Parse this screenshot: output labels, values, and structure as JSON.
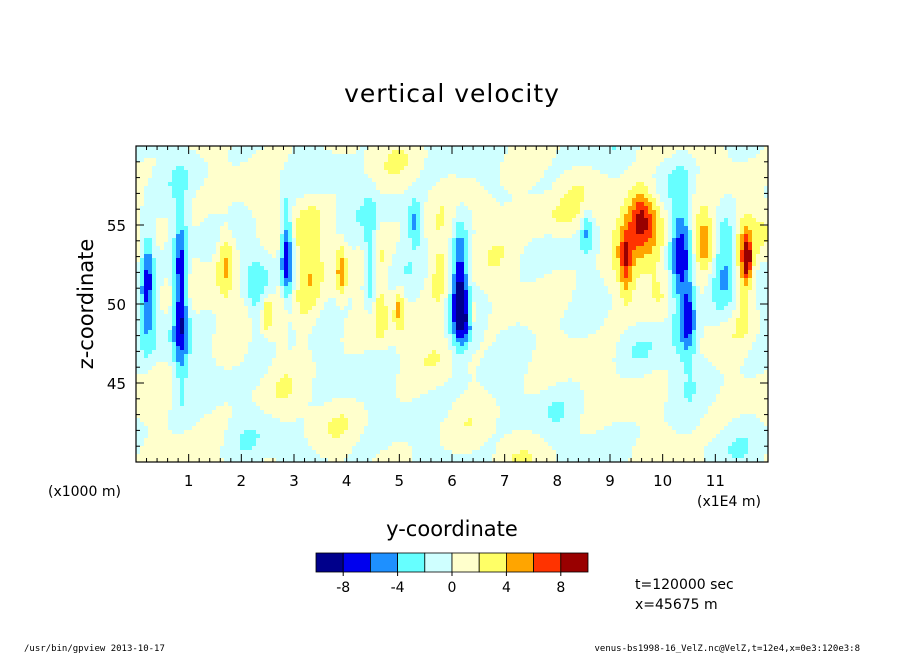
{
  "chart_data": {
    "type": "heatmap",
    "title": "vertical velocity",
    "xlabel": "y-coordinate",
    "ylabel": "z-coordinate",
    "x_unit_label": "(x1E4 m)",
    "y_unit_label": "(x1000 m)",
    "xlim": [
      0,
      12
    ],
    "ylim": [
      40,
      60
    ],
    "x_ticks": [
      "1",
      "2",
      "3",
      "4",
      "5",
      "6",
      "7",
      "8",
      "9",
      "10",
      "11"
    ],
    "y_ticks": [
      "45",
      "50",
      "55"
    ],
    "colorbar": {
      "levels": [
        -10,
        -8,
        -6,
        -4,
        -2,
        0,
        2,
        4,
        6,
        8,
        10
      ],
      "tick_labels": [
        "-8",
        "-4",
        "0",
        "4",
        "8"
      ],
      "colors": [
        "#00008b",
        "#0000ee",
        "#1e90ff",
        "#66ffff",
        "#cfffff",
        "#ffffcc",
        "#ffff66",
        "#ffa500",
        "#ff3300",
        "#990000"
      ]
    },
    "features": [
      {
        "y": 0.22,
        "z": 51.5,
        "value": -6,
        "sy": 0.09,
        "sz": 2.6
      },
      {
        "y": 0.85,
        "z": 50.5,
        "value": -9,
        "sy": 0.1,
        "sz": 3.4
      },
      {
        "y": 1.7,
        "z": 52.8,
        "value": 5,
        "sy": 0.13,
        "sz": 1.6
      },
      {
        "y": 2.25,
        "z": 50.8,
        "value": -2.5,
        "sy": 0.12,
        "sz": 2.5
      },
      {
        "y": 2.75,
        "z": 51.5,
        "value": 3.5,
        "sy": 0.1,
        "sz": 2.6
      },
      {
        "y": 2.5,
        "z": 49.4,
        "value": 4.5,
        "sy": 0.06,
        "sz": 0.8
      },
      {
        "y": 2.85,
        "z": 53.2,
        "value": -8.5,
        "sy": 0.09,
        "sz": 2.1
      },
      {
        "y": 3.25,
        "z": 52.2,
        "value": 3.5,
        "sy": 0.18,
        "sz": 2.8
      },
      {
        "y": 3.9,
        "z": 52.0,
        "value": 5,
        "sy": 0.07,
        "sz": 1.2
      },
      {
        "y": 4.45,
        "z": 52.2,
        "value": -5.5,
        "sy": 0.08,
        "sz": 2.5
      },
      {
        "y": 4.6,
        "z": 51.0,
        "value": 2.5,
        "sy": 0.15,
        "sz": 2.4
      },
      {
        "y": 5.0,
        "z": 49.8,
        "value": 4.5,
        "sy": 0.06,
        "sz": 1.0
      },
      {
        "y": 5.3,
        "z": 55.2,
        "value": -4.5,
        "sy": 0.1,
        "sz": 1.0
      },
      {
        "y": 5.75,
        "z": 50.8,
        "value": 2.5,
        "sy": 0.14,
        "sz": 2.8
      },
      {
        "y": 6.15,
        "z": 51.2,
        "value": -8.5,
        "sy": 0.11,
        "sz": 2.6
      },
      {
        "y": 6.3,
        "z": 48.5,
        "value": -3.5,
        "sy": 0.16,
        "sz": 0.9
      },
      {
        "y": 6.4,
        "z": 49.3,
        "value": 4.5,
        "sy": 0.05,
        "sz": 0.8
      },
      {
        "y": 6.65,
        "z": 55.5,
        "value": 2.5,
        "sy": 0.18,
        "sz": 1.0
      },
      {
        "y": 7.55,
        "z": 55.3,
        "value": 2.5,
        "sy": 0.55,
        "sz": 1.0
      },
      {
        "y": 8.55,
        "z": 54.8,
        "value": -4,
        "sy": 0.08,
        "sz": 1.1
      },
      {
        "y": 9.3,
        "z": 52.6,
        "value": 4.5,
        "sy": 0.08,
        "sz": 1.5
      },
      {
        "y": 9.35,
        "z": 53.5,
        "value": 2.5,
        "sy": 0.3,
        "sz": 2.8
      },
      {
        "y": 9.6,
        "z": 55.6,
        "value": 6,
        "sy": 0.16,
        "sz": 1.3
      },
      {
        "y": 9.9,
        "z": 53.8,
        "value": 3,
        "sy": 0.2,
        "sz": 2.2
      },
      {
        "y": 10.35,
        "z": 52.2,
        "value": -7.5,
        "sy": 0.16,
        "sz": 3.2
      },
      {
        "y": 10.5,
        "z": 49.0,
        "value": -5,
        "sy": 0.1,
        "sz": 1.6
      },
      {
        "y": 10.8,
        "z": 53.8,
        "value": 7,
        "sy": 0.17,
        "sz": 1.3
      },
      {
        "y": 11.15,
        "z": 52.5,
        "value": -3.5,
        "sy": 0.18,
        "sz": 2.4
      },
      {
        "y": 11.55,
        "z": 52.5,
        "value": 5.5,
        "sy": 0.13,
        "sz": 2.2
      },
      {
        "y": 11.6,
        "z": 52.8,
        "value": 8,
        "sy": 0.05,
        "sz": 0.8
      }
    ],
    "annotations": [
      "t=120000 sec",
      "x=45675 m"
    ]
  },
  "footer": {
    "left": "/usr/bin/gpview  2013-10-17",
    "right": "venus-bs1998-16_VelZ.nc@VelZ,t=12e4,x=0e3:120e3:8"
  }
}
